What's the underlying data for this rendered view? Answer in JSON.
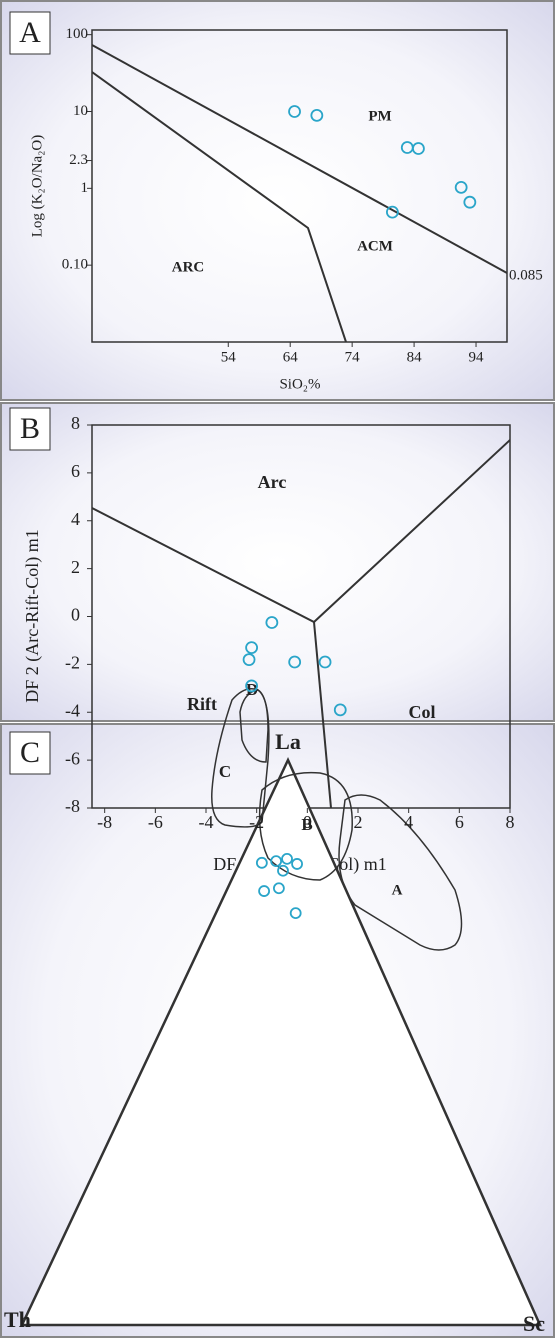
{
  "chart_data": [
    {
      "panel": "A",
      "type": "scatter",
      "ylog": true,
      "xlabel": "SiO₂%",
      "ylabel": "Log (K₂O/Na₂O)",
      "xlim": [
        32,
        99
      ],
      "xticks": [
        54,
        64,
        74,
        84,
        94
      ],
      "ylim": [
        0.01,
        115
      ],
      "yticks": [
        100,
        10,
        2.3,
        1,
        {
          "value": 0.1,
          "label": "0.10"
        }
      ],
      "annotations": [
        "PM",
        "ACM",
        "ARC",
        "0.085"
      ],
      "color": "#2aa5c9",
      "x": [
        64.7,
        68.3,
        82.9,
        84.7,
        80.5,
        91.6,
        93.0
      ],
      "values": [
        10,
        8.9,
        3.4,
        3.3,
        0.49,
        1.03,
        0.66
      ]
    },
    {
      "panel": "B",
      "type": "scatter",
      "ylog": false,
      "xlabel": "DF 1 (Arc-Rift-Col) m1",
      "ylabel": "DF 2 (Arc-Rift-Col) m1",
      "xlim": [
        -8.5,
        8
      ],
      "xticks": [
        -8,
        -6,
        -4,
        -2,
        0,
        2,
        4,
        6,
        8
      ],
      "ylim": [
        -8,
        8
      ],
      "yticks": [
        -8,
        -6,
        -4,
        -2,
        0,
        2,
        4,
        6,
        8
      ],
      "annotations": [
        "Arc",
        "Rift",
        "Col"
      ],
      "color": "#2aa5c9",
      "x": [
        -1.4,
        -2.2,
        -2.3,
        -2.2,
        -0.5,
        0.7,
        1.3
      ],
      "values": [
        -0.25,
        -1.3,
        -1.8,
        -2.9,
        -1.9,
        -1.9,
        -3.9
      ]
    },
    {
      "panel": "C",
      "type": "ternary",
      "corners": [
        "La",
        "Th",
        "Sc"
      ],
      "fields": [
        "A",
        "B",
        "C",
        "D"
      ],
      "color": "#2aa5c9",
      "La": [
        81.8,
        82.1,
        82.5,
        81.6,
        80.4,
        77.3,
        76.8,
        72.9
      ],
      "Th": [
        13.9,
        11.0,
        8.7,
        7.2,
        10.5,
        12.8,
        15.9,
        11.7
      ],
      "Sc": [
        4.3,
        6.9,
        8.8,
        11.2,
        9.1,
        9.9,
        7.3,
        15.4
      ]
    }
  ]
}
